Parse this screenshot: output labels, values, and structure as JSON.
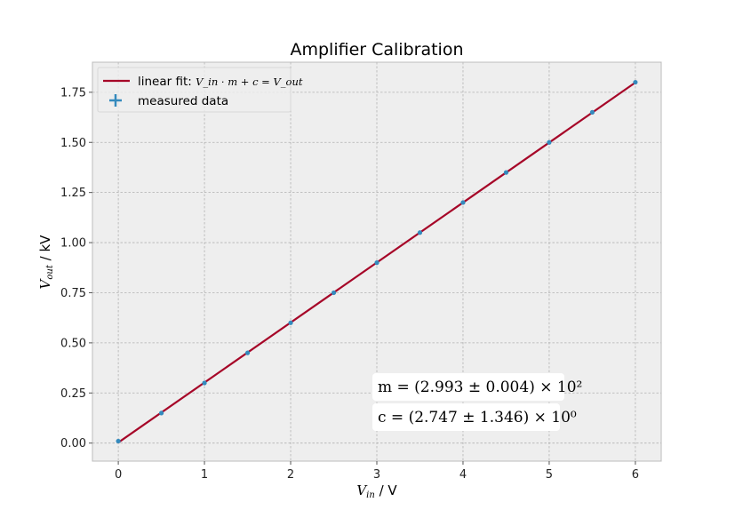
{
  "chart_data": {
    "type": "scatter",
    "title": "Amplifier Calibration",
    "xlabel": "V_in / V",
    "ylabel": "V_out / kV",
    "xlabel_parts": {
      "sym": "V",
      "sub": "in",
      "unit": " / V"
    },
    "ylabel_parts": {
      "sym": "V",
      "sub": "out",
      "unit": " / kV"
    },
    "xlim": [
      -0.3,
      6.3
    ],
    "ylim": [
      -0.09,
      1.9
    ],
    "xticks": [
      0,
      1,
      2,
      3,
      4,
      5,
      6
    ],
    "xtick_labels": [
      "0",
      "1",
      "2",
      "3",
      "4",
      "5",
      "6"
    ],
    "yticks": [
      0.0,
      0.25,
      0.5,
      0.75,
      1.0,
      1.25,
      1.5,
      1.75
    ],
    "ytick_labels": [
      "0.00",
      "0.25",
      "0.50",
      "0.75",
      "1.00",
      "1.25",
      "1.50",
      "1.75"
    ],
    "grid": true,
    "legend_position": "top-left",
    "series": [
      {
        "name": "measured data",
        "kind": "scatter",
        "color": "#348abd",
        "x": [
          0,
          0.5,
          1,
          1.5,
          2,
          2.5,
          3,
          3.5,
          4,
          4.5,
          5,
          5.5,
          6
        ],
        "y": [
          0.01,
          0.15,
          0.3,
          0.45,
          0.6,
          0.75,
          0.9,
          1.05,
          1.2,
          1.35,
          1.5,
          1.65,
          1.8
        ]
      },
      {
        "name": "linear fit: V_in · m + c = V_out",
        "kind": "line",
        "color": "#a60628",
        "x": [
          0,
          6
        ],
        "y": [
          0.0027,
          1.7985
        ]
      }
    ],
    "legend": [
      {
        "label_prefix": "linear fit: ",
        "label_math": "V_in · m + c = V_out",
        "kind": "line"
      },
      {
        "label": "measured data",
        "kind": "marker"
      }
    ],
    "annotations": [
      {
        "text": "m = (2.993 ± 0.004) × 10²"
      },
      {
        "text": "c = (2.747 ± 1.346) × 10⁰"
      }
    ],
    "colors": {
      "axes_bg": "#eeeeee",
      "grid": "#b2b2b2",
      "axes_edge": "#bcbcbc",
      "fit": "#a60628",
      "data": "#348abd"
    }
  }
}
